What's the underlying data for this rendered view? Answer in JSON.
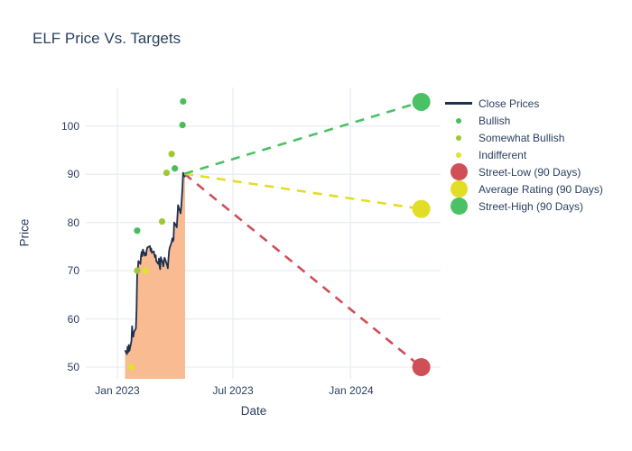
{
  "title": "ELF Price Vs. Targets",
  "colors": {
    "text": "#2a3f5f",
    "grid": "#e9edf5",
    "close_line": "#1f2f4e",
    "close_fill": "#f8bb92",
    "bullish": "#49bd5c",
    "somewhat_bullish": "#9dc832",
    "indifferent": "#e4e030",
    "street_low": "#d04e56",
    "average_rating": "#e2dd27",
    "street_high": "#4ac164"
  },
  "legend": {
    "items": [
      {
        "label": "Close Prices",
        "type": "line",
        "color": "#1f2f4e"
      },
      {
        "label": "Bullish",
        "type": "dot-small",
        "color": "#49bd5c"
      },
      {
        "label": "Somewhat Bullish",
        "type": "dot-small",
        "color": "#9dc832"
      },
      {
        "label": "Indifferent",
        "type": "dot-small",
        "color": "#e4e030"
      },
      {
        "label": "Street-Low (90 Days)",
        "type": "dot-large",
        "color": "#d04e56"
      },
      {
        "label": "Average Rating (90 Days)",
        "type": "dot-large",
        "color": "#e2dd27"
      },
      {
        "label": "Street-High (90 Days)",
        "type": "dot-large",
        "color": "#4ac164"
      }
    ]
  },
  "chart_data": {
    "type": "line",
    "title": "ELF Price Vs. Targets",
    "xlabel": "Date",
    "ylabel": "Price",
    "y_ticks": [
      50,
      60,
      70,
      80,
      90,
      100
    ],
    "x_tick_dates": [
      {
        "label": "Jan 2023",
        "date": "2023-01-01"
      },
      {
        "label": "Jul 2023",
        "date": "2023-07-01"
      },
      {
        "label": "Jan 2024",
        "date": "2024-01-01"
      }
    ],
    "ylim": [
      47.6,
      108.1
    ],
    "xlim": [
      "2022-11-15",
      "2024-05-20"
    ],
    "grid": true,
    "legend_position": "right",
    "close_prices": {
      "name": "Close Prices",
      "points": [
        [
          "2023-01-13",
          53.5
        ],
        [
          "2023-01-16",
          52.7
        ],
        [
          "2023-01-17",
          54.2
        ],
        [
          "2023-01-18",
          53.1
        ],
        [
          "2023-01-19",
          54.6
        ],
        [
          "2023-01-20",
          53.4
        ],
        [
          "2023-01-23",
          55.4
        ],
        [
          "2023-01-24",
          58.5
        ],
        [
          "2023-01-25",
          56.8
        ],
        [
          "2023-01-26",
          56.3
        ],
        [
          "2023-01-27",
          57.3
        ],
        [
          "2023-01-30",
          58.0
        ],
        [
          "2023-01-31",
          61.5
        ],
        [
          "2023-02-01",
          69.0
        ],
        [
          "2023-02-02",
          70.3
        ],
        [
          "2023-02-03",
          72.0
        ],
        [
          "2023-02-06",
          71.4
        ],
        [
          "2023-02-07",
          73.1
        ],
        [
          "2023-02-08",
          73.9
        ],
        [
          "2023-02-09",
          73.0
        ],
        [
          "2023-02-10",
          74.4
        ],
        [
          "2023-02-13",
          73.1
        ],
        [
          "2023-02-14",
          73.7
        ],
        [
          "2023-02-15",
          73.2
        ],
        [
          "2023-02-16",
          74.3
        ],
        [
          "2023-02-17",
          74.8
        ],
        [
          "2023-02-21",
          75.1
        ],
        [
          "2023-02-22",
          74.1
        ],
        [
          "2023-02-23",
          74.6
        ],
        [
          "2023-02-24",
          73.7
        ],
        [
          "2023-02-27",
          74.0
        ],
        [
          "2023-02-28",
          73.3
        ],
        [
          "2023-03-01",
          72.8
        ],
        [
          "2023-03-02",
          73.2
        ],
        [
          "2023-03-03",
          72.0
        ],
        [
          "2023-03-06",
          71.4
        ],
        [
          "2023-03-07",
          72.5
        ],
        [
          "2023-03-08",
          71.0
        ],
        [
          "2023-03-09",
          70.3
        ],
        [
          "2023-03-10",
          72.8
        ],
        [
          "2023-03-13",
          71.6
        ],
        [
          "2023-03-14",
          70.9
        ],
        [
          "2023-03-15",
          72.1
        ],
        [
          "2023-03-16",
          72.7
        ],
        [
          "2023-03-17",
          72.3
        ],
        [
          "2023-03-20",
          71.1
        ],
        [
          "2023-03-21",
          70.5
        ],
        [
          "2023-03-22",
          72.6
        ],
        [
          "2023-03-23",
          74.1
        ],
        [
          "2023-03-24",
          74.8
        ],
        [
          "2023-03-27",
          75.9
        ],
        [
          "2023-03-28",
          76.7
        ],
        [
          "2023-03-29",
          76.1
        ],
        [
          "2023-03-30",
          76.5
        ],
        [
          "2023-03-31",
          80.0
        ],
        [
          "2023-04-03",
          79.3
        ],
        [
          "2023-04-04",
          79.0
        ],
        [
          "2023-04-05",
          81.2
        ],
        [
          "2023-04-06",
          83.6
        ],
        [
          "2023-04-10",
          81.9
        ],
        [
          "2023-04-11",
          83.2
        ],
        [
          "2023-04-12",
          85.1
        ],
        [
          "2023-04-13",
          87.2
        ],
        [
          "2023-04-14",
          90.3
        ],
        [
          "2023-04-17",
          89.4
        ]
      ]
    },
    "ratings": [
      {
        "name": "Bullish",
        "color": "#49bd5c",
        "points": [
          [
            "2023-02-01",
            78.3
          ],
          [
            "2023-04-01",
            91.2
          ],
          [
            "2023-04-13",
            100.2
          ],
          [
            "2023-04-14",
            105.1
          ]
        ]
      },
      {
        "name": "Somewhat Bullish",
        "color": "#9dc832",
        "points": [
          [
            "2023-02-01",
            70.0
          ],
          [
            "2023-03-12",
            80.2
          ],
          [
            "2023-03-19",
            90.3
          ],
          [
            "2023-03-27",
            94.2
          ]
        ]
      },
      {
        "name": "Indifferent",
        "color": "#e4e030",
        "points": [
          [
            "2023-01-23",
            50.0
          ],
          [
            "2023-02-14",
            70.0
          ]
        ]
      }
    ],
    "targets": {
      "start": {
        "date": "2023-04-16",
        "price": 90.1
      },
      "end_date": "2024-04-21",
      "items": [
        {
          "name": "Street-Low (90 Days)",
          "color": "#d04e56",
          "value": 50.0
        },
        {
          "name": "Average Rating (90 Days)",
          "color": "#e2dd27",
          "value": 82.8
        },
        {
          "name": "Street-High (90 Days)",
          "color": "#4ac164",
          "value": 105.0
        }
      ]
    }
  }
}
